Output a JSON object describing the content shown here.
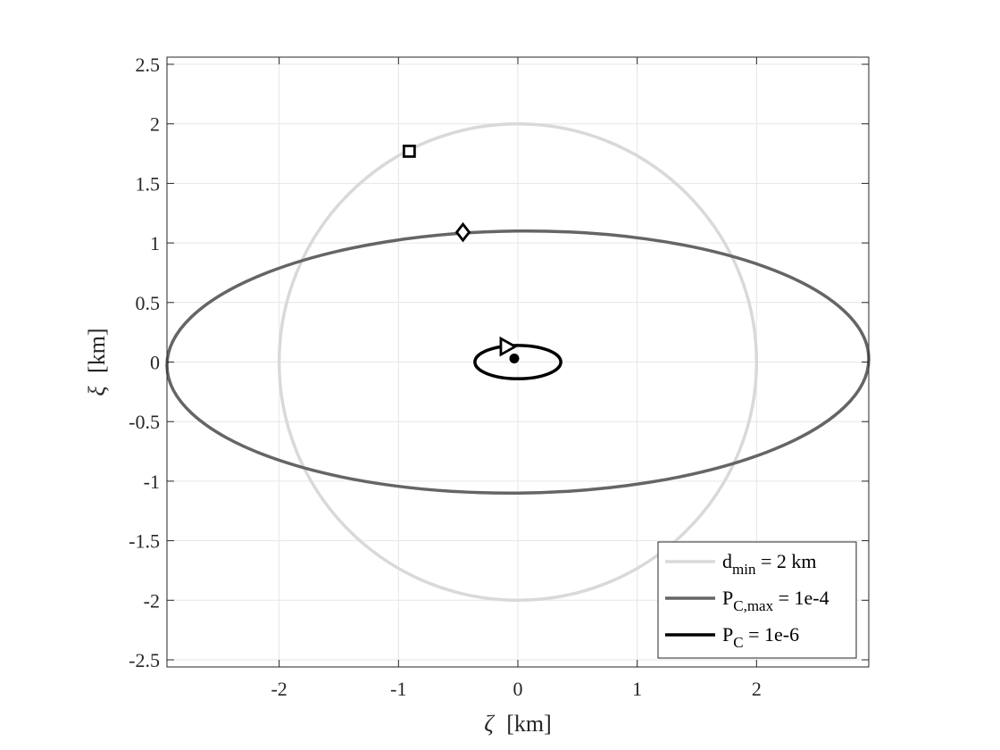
{
  "chart_data": {
    "type": "line",
    "xlabel_symbol": "ζ",
    "xlabel_unit": "[km]",
    "ylabel_symbol": "ξ",
    "ylabel_unit": "[km]",
    "xlim": [
      -2.94,
      2.94
    ],
    "ylim": [
      -2.56,
      2.56
    ],
    "xticks": [
      -2,
      -1,
      0,
      1,
      2
    ],
    "xtick_labels": [
      "-2",
      "-1",
      "0",
      "1",
      "2"
    ],
    "yticks": [
      2.5,
      2,
      1.5,
      1,
      0.5,
      0,
      -0.5,
      -1,
      -1.5,
      -2,
      -2.5
    ],
    "ytick_labels": [
      "2.5",
      "2",
      "1.5",
      "1",
      "0.5",
      "0",
      "-0.5",
      "-1",
      "-1.5",
      "-2",
      "-2.5"
    ],
    "grid": true,
    "legend_position": "bottom-right",
    "series": [
      {
        "legend": {
          "base": "d",
          "sub": "min",
          "rest": " = 2 km"
        },
        "shape": "circle",
        "center": [
          0,
          0
        ],
        "semi_axes": [
          2,
          2
        ],
        "tilt_deg": 0,
        "color": "#d9d9d9"
      },
      {
        "legend": {
          "base": "P",
          "sub": "C,max",
          "rest": " = 1e-4"
        },
        "shape": "ellipse",
        "center": [
          0,
          0
        ],
        "semi_axes": [
          2.94,
          1.1
        ],
        "tilt_deg": -0.6,
        "color": "#656565"
      },
      {
        "legend": {
          "base": "P",
          "sub": "C",
          "rest": " = 1e-6"
        },
        "shape": "ellipse",
        "center": [
          0,
          0
        ],
        "semi_axes": [
          0.36,
          0.14
        ],
        "tilt_deg": 0,
        "color": "#000000"
      }
    ],
    "markers": [
      {
        "name": "square",
        "x": -0.91,
        "y": 1.77
      },
      {
        "name": "diamond",
        "x": -0.46,
        "y": 1.09
      },
      {
        "name": "triangle-right",
        "x": -0.09,
        "y": 0.13
      },
      {
        "name": "dot",
        "x": -0.03,
        "y": 0.03
      }
    ]
  }
}
